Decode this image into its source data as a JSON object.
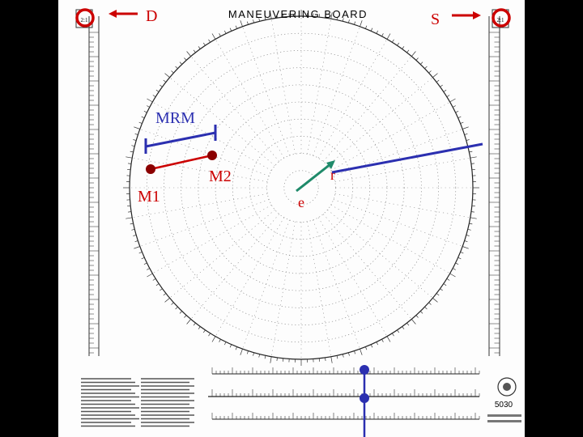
{
  "title": "MANEUVERING BOARD",
  "labels": {
    "D": "D",
    "S": "S",
    "MRM": "MRM",
    "M1": "M1",
    "M2": "M2",
    "e": "e",
    "r": "r"
  },
  "scale_left_top": "2:1",
  "scale_right_top": "2:1",
  "chart_number": "5030",
  "colors": {
    "red": "#cc0000",
    "blue": "#2b2fb0",
    "green": "#1f8a6a",
    "dark_red": "#8b0000",
    "grid": "#9aa"
  }
}
